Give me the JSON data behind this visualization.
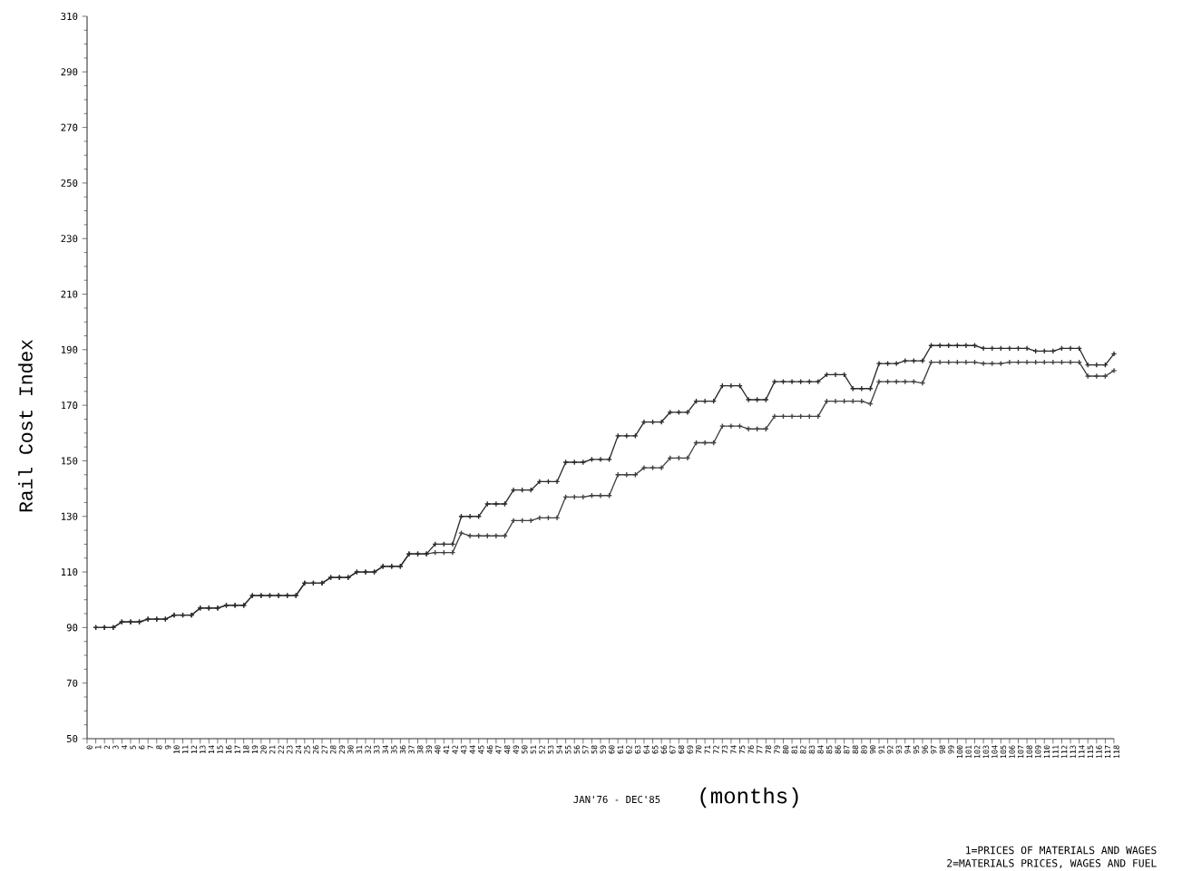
{
  "chart_data": {
    "type": "line",
    "ylabel": "Rail Cost Index",
    "xlabel": "JAN'76 - DEC'85",
    "annotations": [
      "(months)",
      "1=PRICES OF MATERIALS AND WAGES",
      "2=MATERIALS PRICES, WAGES AND FUEL"
    ],
    "x": [
      1,
      2,
      3,
      4,
      5,
      6,
      7,
      8,
      9,
      10,
      11,
      12,
      13,
      14,
      15,
      16,
      17,
      18,
      19,
      20,
      21,
      22,
      23,
      24,
      25,
      26,
      27,
      28,
      29,
      30,
      31,
      32,
      33,
      34,
      35,
      36,
      37,
      38,
      39,
      40,
      41,
      42,
      43,
      44,
      45,
      46,
      47,
      48,
      49,
      50,
      51,
      52,
      53,
      54,
      55,
      56,
      57,
      58,
      59,
      60,
      61,
      62,
      63,
      64,
      65,
      66,
      67,
      68,
      69,
      70,
      71,
      72,
      73,
      74,
      75,
      76,
      77,
      78,
      79,
      80,
      81,
      82,
      83,
      84,
      85,
      86,
      87,
      88,
      89,
      90,
      91,
      92,
      93,
      94,
      95,
      96,
      97,
      98,
      99,
      100,
      101,
      102,
      103,
      104,
      105,
      106,
      107,
      108,
      109,
      110,
      111,
      112,
      113,
      114,
      115,
      116,
      117,
      118
    ],
    "series": [
      {
        "color": "#404040",
        "values": [
          90,
          90,
          90,
          92,
          92,
          92,
          93,
          93,
          93,
          94.5,
          94.5,
          94.5,
          97,
          97,
          97,
          98,
          98,
          98,
          101.5,
          101.5,
          101.5,
          101.5,
          101.5,
          101.5,
          106,
          106,
          106,
          108,
          108,
          108,
          110,
          110,
          110,
          112,
          112,
          112,
          116.5,
          116.5,
          116.5,
          117,
          117,
          117,
          124,
          123,
          123,
          123,
          123,
          123,
          128.5,
          128.5,
          128.5,
          129.5,
          129.5,
          129.5,
          137,
          137,
          137,
          137.5,
          137.5,
          137.5,
          145,
          145,
          145,
          147.5,
          147.5,
          147.5,
          151,
          151,
          151,
          156.5,
          156.5,
          156.5,
          162.5,
          162.5,
          162.5,
          161.5,
          161.5,
          161.5,
          166,
          166,
          166,
          166,
          166,
          166,
          171.5,
          171.5,
          171.5,
          171.5,
          171.5,
          170.5,
          178.5,
          178.5,
          178.5,
          178.5,
          178.5,
          178,
          185.5,
          185.5,
          185.5,
          185.5,
          185.5,
          185.5,
          185,
          185,
          185,
          185.5,
          185.5,
          185.5,
          185.5,
          185.5,
          185.5,
          185.5,
          185.5,
          185.5,
          180.5,
          180.5,
          180.5,
          182.5
        ]
      },
      {
        "color": "#2a2a2a",
        "values": [
          90,
          90,
          90,
          92,
          92,
          92,
          93,
          93,
          93,
          94.5,
          94.5,
          94.5,
          97,
          97,
          97,
          98,
          98,
          98,
          101.5,
          101.5,
          101.5,
          101.5,
          101.5,
          101.5,
          106,
          106,
          106,
          108,
          108,
          108,
          110,
          110,
          110,
          112,
          112,
          112,
          116.5,
          116.5,
          116.5,
          120,
          120,
          120,
          130,
          130,
          130,
          134.5,
          134.5,
          134.5,
          139.5,
          139.5,
          139.5,
          142.5,
          142.5,
          142.5,
          149.5,
          149.5,
          149.5,
          150.5,
          150.5,
          150.5,
          159,
          159,
          159,
          164,
          164,
          164,
          167.5,
          167.5,
          167.5,
          171.5,
          171.5,
          171.5,
          177,
          177,
          177,
          172,
          172,
          172,
          178.5,
          178.5,
          178.5,
          178.5,
          178.5,
          178.5,
          181,
          181,
          181,
          176,
          176,
          176,
          185,
          185,
          185,
          186,
          186,
          186,
          191.5,
          191.5,
          191.5,
          191.5,
          191.5,
          191.5,
          190.5,
          190.5,
          190.5,
          190.5,
          190.5,
          190.5,
          189.5,
          189.5,
          189.5,
          190.5,
          190.5,
          190.5,
          184.5,
          184.5,
          184.5,
          188.5
        ]
      }
    ],
    "xlim": [
      0,
      118
    ],
    "xticks": [
      0,
      1,
      2,
      3,
      4,
      5,
      6,
      7,
      8,
      9,
      10,
      11,
      12,
      13,
      14,
      15,
      16,
      17,
      18,
      19,
      20,
      21,
      22,
      23,
      24,
      25,
      26,
      27,
      28,
      29,
      30,
      31,
      32,
      33,
      34,
      35,
      36,
      37,
      38,
      39,
      40,
      41,
      42,
      43,
      44,
      45,
      46,
      47,
      48,
      49,
      50,
      51,
      52,
      53,
      54,
      55,
      56,
      57,
      58,
      59,
      60,
      61,
      62,
      63,
      64,
      65,
      66,
      67,
      68,
      69,
      70,
      71,
      72,
      73,
      74,
      75,
      76,
      77,
      78,
      79,
      80,
      81,
      82,
      83,
      84,
      85,
      86,
      87,
      88,
      89,
      90,
      91,
      92,
      93,
      94,
      95,
      96,
      97,
      98,
      99,
      100,
      101,
      102,
      103,
      104,
      105,
      106,
      107,
      108,
      109,
      110,
      111,
      112,
      113,
      114,
      115,
      116,
      117,
      118
    ],
    "ylim": [
      50,
      310
    ],
    "yticks": [
      50,
      70,
      90,
      110,
      130,
      150,
      170,
      190,
      210,
      230,
      250,
      270,
      290,
      310
    ],
    "marker": "cross",
    "line_style": "solid"
  }
}
